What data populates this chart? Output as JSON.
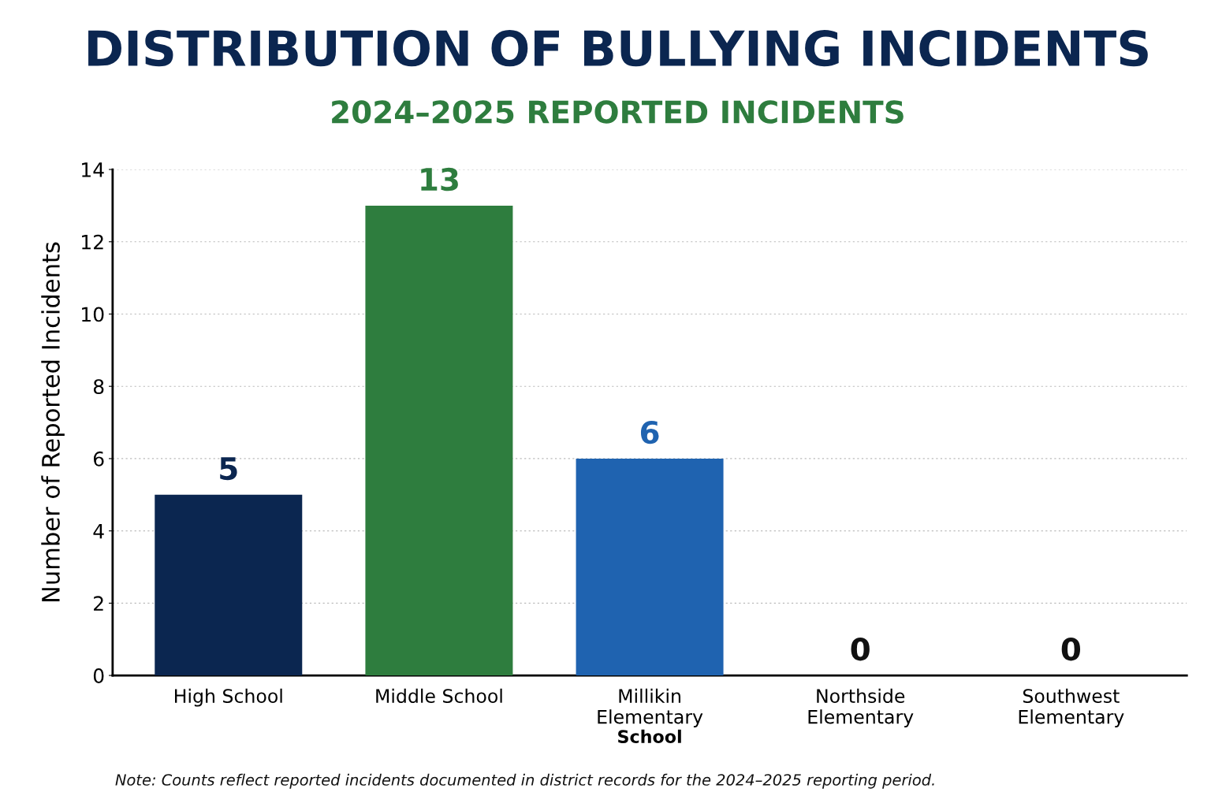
{
  "chart_data": {
    "type": "bar",
    "title": "DISTRIBUTION OF BULLYING INCIDENTS",
    "subtitle": "2024–2025 REPORTED INCIDENTS",
    "xlabel": "School",
    "ylabel": "Number of Reported Incidents",
    "categories": [
      "High School",
      "Middle School",
      "Millikin\nElementary",
      "Northside\nElementary",
      "Southwest\nElementary"
    ],
    "values": [
      5,
      13,
      6,
      0,
      0
    ],
    "colors": [
      "#0b2650",
      "#2e7d3e",
      "#1f63b0",
      "#111111",
      "#111111"
    ],
    "ylim": [
      0,
      14
    ],
    "yticks": [
      0,
      2,
      4,
      6,
      8,
      10,
      12,
      14
    ],
    "grid": "y",
    "data_labels": true,
    "annotations": [
      "Note: Counts reflect reported incidents documented in district records for the 2024–2025 reporting period."
    ]
  }
}
